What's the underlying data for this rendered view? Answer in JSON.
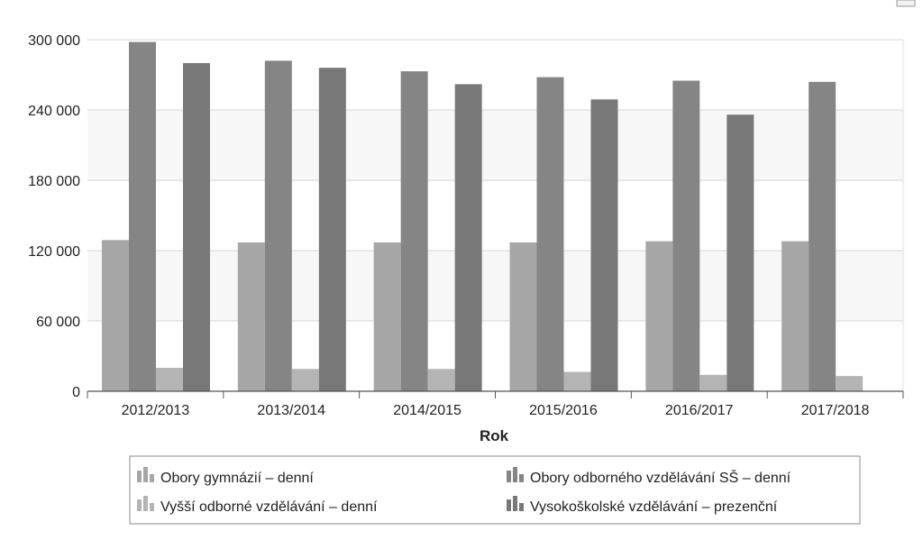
{
  "chart_data": {
    "type": "bar",
    "xlabel": "Rok",
    "ylabel": "",
    "ylim": [
      0,
      300000
    ],
    "yticks": [
      0,
      60000,
      120000,
      180000,
      240000,
      300000
    ],
    "ytick_labels": [
      "0",
      "60 000",
      "120 000",
      "180 000",
      "240 000",
      "300 000"
    ],
    "categories": [
      "2012/2013",
      "2013/2014",
      "2014/2015",
      "2015/2016",
      "2016/2017",
      "2017/2018"
    ],
    "legend_position": "bottom",
    "grid": true,
    "series": [
      {
        "name": "Obory gymnázií – denní",
        "color": "#a6a6a6",
        "values": [
          129000,
          127000,
          127000,
          127000,
          128000,
          128000
        ]
      },
      {
        "name": "Obory odborného vzdělávání SŠ – denní",
        "color": "#858585",
        "values": [
          298000,
          282000,
          273000,
          268000,
          265000,
          264000
        ]
      },
      {
        "name": "Vyšší odborné vzdělávání – denní",
        "color": "#b4b4b4",
        "values": [
          20000,
          19000,
          19000,
          16500,
          14000,
          13000
        ]
      },
      {
        "name": "Vysokoškolské vzdělávání – prezenční",
        "color": "#787878",
        "values": [
          280000,
          276000,
          262000,
          249000,
          236000,
          null
        ]
      }
    ]
  },
  "ui": {
    "menu_icon": "menu-icon",
    "legend_icon": "bar-chart-icon"
  }
}
